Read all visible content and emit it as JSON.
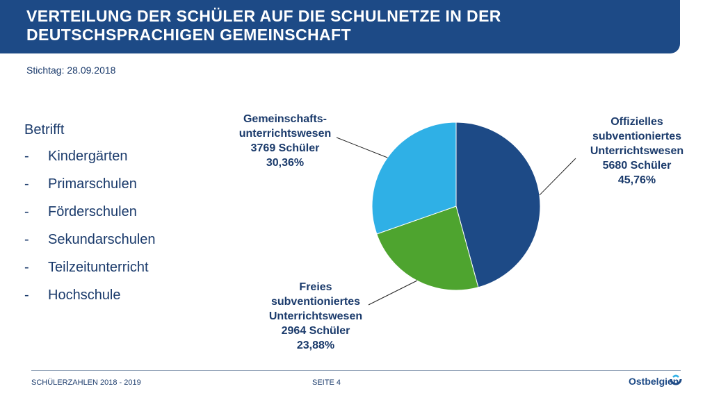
{
  "header": {
    "title_line1": "VERTEILUNG DER SCHÜLER AUF DIE SCHULNETZE IN DER",
    "title_line2": "DEUTSCHSPRACHIGEN GEMEINSCHAFT"
  },
  "stichtag": "Stichtag: 28.09.2018",
  "betrifft": {
    "heading": "Betrifft",
    "items": [
      "Kindergärten",
      "Primarschulen",
      "Förderschulen",
      "Sekundarschulen",
      "Teilzeitunterricht",
      "Hochschule"
    ]
  },
  "chart_data": {
    "type": "pie",
    "title": "",
    "colors": [
      "#1d4a86",
      "#4ea42f",
      "#2fb0e6"
    ],
    "slices": [
      {
        "label_lines": [
          "Offizielles",
          "subventioniertes",
          "Unterrichtswesen"
        ],
        "count": "5680 Schüler",
        "value": 5680,
        "percent": "45,76%"
      },
      {
        "label_lines": [
          "Freies",
          "subventioniertes",
          "Unterrichtswesen"
        ],
        "count": "2964 Schüler",
        "value": 2964,
        "percent": "23,88%"
      },
      {
        "label_lines": [
          "Gemeinschafts-",
          "unterrichtswesen"
        ],
        "count": "3769 Schüler",
        "value": 3769,
        "percent": "30,36%"
      }
    ]
  },
  "footer": {
    "left": "SCHÜLERZAHLEN 2018 - 2019",
    "page": "SEITE 4",
    "logo": "Ostbelgien"
  }
}
